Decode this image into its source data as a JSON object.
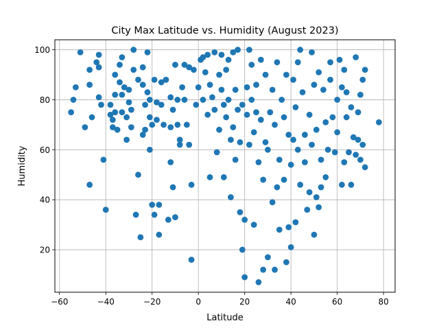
{
  "chart_data": {
    "type": "scatter",
    "title": "City Max Latitude vs. Humidity (August 2023)",
    "xlabel": "Latitude",
    "ylabel": "Humidity",
    "xlim": [
      -62,
      85
    ],
    "ylim": [
      3,
      104
    ],
    "xticks": [
      -60,
      -40,
      -20,
      0,
      20,
      40,
      60,
      80
    ],
    "yticks": [
      20,
      40,
      60,
      80,
      100
    ],
    "grid": true,
    "marker_color": "#1f77b4",
    "points": [
      [
        -55,
        75
      ],
      [
        -54,
        80
      ],
      [
        -53,
        85
      ],
      [
        -51,
        99
      ],
      [
        -49,
        69
      ],
      [
        -47,
        86
      ],
      [
        -47,
        92
      ],
      [
        -46,
        73
      ],
      [
        -47,
        46
      ],
      [
        -44,
        95
      ],
      [
        -43,
        98
      ],
      [
        -43,
        93
      ],
      [
        -43,
        81
      ],
      [
        -42,
        78
      ],
      [
        -41,
        56
      ],
      [
        -40,
        36
      ],
      [
        -38,
        78
      ],
      [
        -38,
        74
      ],
      [
        -37,
        72
      ],
      [
        -37,
        69
      ],
      [
        -36,
        90
      ],
      [
        -36,
        82
      ],
      [
        -36,
        75
      ],
      [
        -35,
        68
      ],
      [
        -34,
        94
      ],
      [
        -34,
        87
      ],
      [
        -33,
        97
      ],
      [
        -33,
        82
      ],
      [
        -33,
        75
      ],
      [
        -32,
        85
      ],
      [
        -31,
        73
      ],
      [
        -31,
        64
      ],
      [
        -30,
        84
      ],
      [
        -30,
        79
      ],
      [
        -29,
        76
      ],
      [
        -29,
        69
      ],
      [
        -28,
        100
      ],
      [
        -28,
        92
      ],
      [
        -27,
        34
      ],
      [
        -26,
        88
      ],
      [
        -26,
        50
      ],
      [
        -25,
        25
      ],
      [
        -24,
        93
      ],
      [
        -24,
        86
      ],
      [
        -24,
        66
      ],
      [
        -23,
        78
      ],
      [
        -23,
        68
      ],
      [
        -22,
        99
      ],
      [
        -22,
        83
      ],
      [
        -21,
        80
      ],
      [
        -21,
        73
      ],
      [
        -21,
        60
      ],
      [
        -20,
        38
      ],
      [
        -20,
        70
      ],
      [
        -19,
        88
      ],
      [
        -19,
        34
      ],
      [
        -18,
        79
      ],
      [
        -18,
        72
      ],
      [
        -17,
        38
      ],
      [
        -17,
        26
      ],
      [
        -16,
        87
      ],
      [
        -16,
        78
      ],
      [
        -15,
        70
      ],
      [
        -14,
        88
      ],
      [
        -13,
        32
      ],
      [
        -12,
        81
      ],
      [
        -12,
        69
      ],
      [
        -12,
        55
      ],
      [
        -11,
        76
      ],
      [
        -11,
        45
      ],
      [
        -10,
        94
      ],
      [
        -10,
        33
      ],
      [
        -9,
        80
      ],
      [
        -9,
        70
      ],
      [
        -8,
        64
      ],
      [
        -8,
        62
      ],
      [
        -7,
        85
      ],
      [
        -6,
        94
      ],
      [
        -6,
        80
      ],
      [
        -5,
        70
      ],
      [
        -4,
        93
      ],
      [
        -4,
        62
      ],
      [
        -3,
        16
      ],
      [
        -3,
        46
      ],
      [
        -2,
        92
      ],
      [
        -1,
        78
      ],
      [
        0,
        85
      ],
      [
        1,
        96
      ],
      [
        2,
        97
      ],
      [
        2,
        80
      ],
      [
        3,
        91
      ],
      [
        4,
        98
      ],
      [
        4,
        74
      ],
      [
        5,
        86
      ],
      [
        5,
        49
      ],
      [
        6,
        81
      ],
      [
        7,
        99
      ],
      [
        7,
        76
      ],
      [
        8,
        59
      ],
      [
        9,
        90
      ],
      [
        9,
        68
      ],
      [
        10,
        98
      ],
      [
        10,
        84
      ],
      [
        11,
        78
      ],
      [
        11,
        49
      ],
      [
        12,
        92
      ],
      [
        12,
        73
      ],
      [
        13,
        96
      ],
      [
        13,
        80
      ],
      [
        14,
        64
      ],
      [
        14,
        41
      ],
      [
        15,
        99
      ],
      [
        15,
        69
      ],
      [
        16,
        84
      ],
      [
        16,
        56
      ],
      [
        17,
        100
      ],
      [
        17,
        76
      ],
      [
        18,
        35
      ],
      [
        18,
        63
      ],
      [
        19,
        78
      ],
      [
        19,
        20
      ],
      [
        20,
        32
      ],
      [
        20,
        9
      ],
      [
        21,
        85
      ],
      [
        21,
        74
      ],
      [
        22,
        100
      ],
      [
        22,
        62
      ],
      [
        23,
        94
      ],
      [
        23,
        80
      ],
      [
        24,
        67
      ],
      [
        24,
        30
      ],
      [
        25,
        86
      ],
      [
        25,
        75
      ],
      [
        26,
        7
      ],
      [
        26,
        55
      ],
      [
        27,
        96
      ],
      [
        27,
        72
      ],
      [
        28,
        48
      ],
      [
        28,
        12
      ],
      [
        29,
        90
      ],
      [
        29,
        63
      ],
      [
        30,
        60
      ],
      [
        30,
        17
      ],
      [
        31,
        75
      ],
      [
        32,
        84
      ],
      [
        32,
        39
      ],
      [
        33,
        70
      ],
      [
        33,
        12
      ],
      [
        34,
        95
      ],
      [
        34,
        45
      ],
      [
        35,
        56
      ],
      [
        35,
        28
      ],
      [
        36,
        80
      ],
      [
        37,
        73
      ],
      [
        37,
        48
      ],
      [
        38,
        90
      ],
      [
        38,
        15
      ],
      [
        39,
        66
      ],
      [
        39,
        29
      ],
      [
        40,
        54
      ],
      [
        40,
        21
      ],
      [
        41,
        88
      ],
      [
        41,
        64
      ],
      [
        42,
        77
      ],
      [
        42,
        31
      ],
      [
        43,
        95
      ],
      [
        43,
        60
      ],
      [
        44,
        100
      ],
      [
        44,
        46
      ],
      [
        45,
        83
      ],
      [
        46,
        66
      ],
      [
        46,
        55
      ],
      [
        47,
        36
      ],
      [
        48,
        74
      ],
      [
        48,
        43
      ],
      [
        49,
        99
      ],
      [
        49,
        62
      ],
      [
        50,
        86
      ],
      [
        50,
        26
      ],
      [
        51,
        68
      ],
      [
        51,
        41
      ],
      [
        52,
        91
      ],
      [
        52,
        37
      ],
      [
        53,
        56
      ],
      [
        53,
        45
      ],
      [
        54,
        84
      ],
      [
        55,
        71
      ],
      [
        55,
        49
      ],
      [
        56,
        60
      ],
      [
        57,
        95
      ],
      [
        57,
        88
      ],
      [
        58,
        73
      ],
      [
        59,
        59
      ],
      [
        60,
        80
      ],
      [
        60,
        67
      ],
      [
        61,
        96
      ],
      [
        62,
        46
      ],
      [
        62,
        85
      ],
      [
        63,
        55
      ],
      [
        63,
        92
      ],
      [
        64,
        73
      ],
      [
        64,
        83
      ],
      [
        65,
        59
      ],
      [
        66,
        77
      ],
      [
        66,
        46
      ],
      [
        67,
        65
      ],
      [
        68,
        97
      ],
      [
        68,
        58
      ],
      [
        69,
        75
      ],
      [
        69,
        64
      ],
      [
        70,
        82
      ],
      [
        70,
        56
      ],
      [
        71,
        88
      ],
      [
        71,
        62
      ],
      [
        72,
        92
      ],
      [
        72,
        53
      ],
      [
        78,
        71
      ]
    ]
  }
}
